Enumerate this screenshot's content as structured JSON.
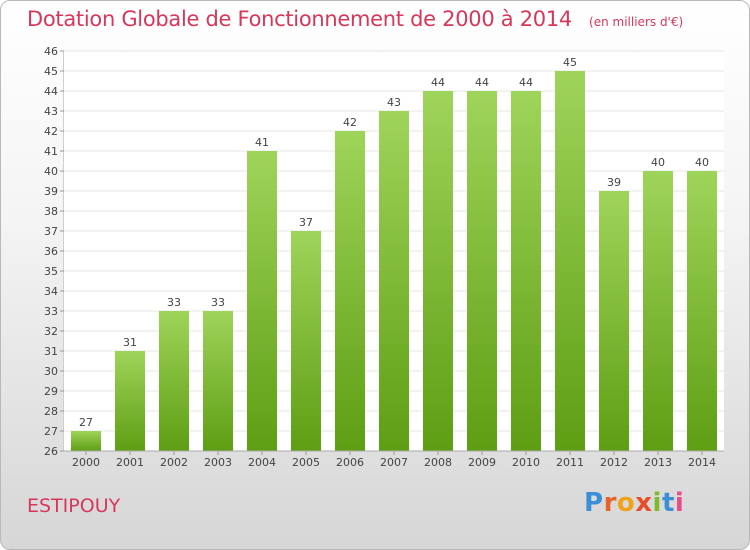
{
  "title": "Dotation Globale de Fonctionnement de 2000 à 2014",
  "unit": "(en milliers d'€)",
  "commune": "ESTIPOUY",
  "logo": {
    "text": "Proxiti",
    "letters": [
      "P",
      "r",
      "o",
      "x",
      "i",
      "t",
      "i"
    ],
    "colors": [
      "#3b8fd6",
      "#e8622c",
      "#f0a21b",
      "#e84c2b",
      "#7fba2c",
      "#3b8fd6",
      "#e84c8b"
    ]
  },
  "colors": {
    "bar_top": "#9fd45a",
    "bar_bottom": "#5e9e13",
    "title": "#d8375a",
    "grid": "#e4e4e4"
  },
  "chart_data": {
    "type": "bar",
    "title": "Dotation Globale de Fonctionnement de 2000 à 2014",
    "subtitle": "(en milliers d'€)",
    "categories": [
      "2000",
      "2001",
      "2002",
      "2003",
      "2004",
      "2005",
      "2006",
      "2007",
      "2008",
      "2009",
      "2010",
      "2011",
      "2012",
      "2013",
      "2014"
    ],
    "values": [
      27,
      31,
      33,
      33,
      41,
      37,
      42,
      43,
      44,
      44,
      44,
      45,
      39,
      40,
      40
    ],
    "ylim": [
      26,
      46
    ],
    "yticks": [
      26,
      27,
      28,
      29,
      30,
      31,
      32,
      33,
      34,
      35,
      36,
      37,
      38,
      39,
      40,
      41,
      42,
      43,
      44,
      45,
      46
    ],
    "grid": true,
    "data_labels": true
  }
}
